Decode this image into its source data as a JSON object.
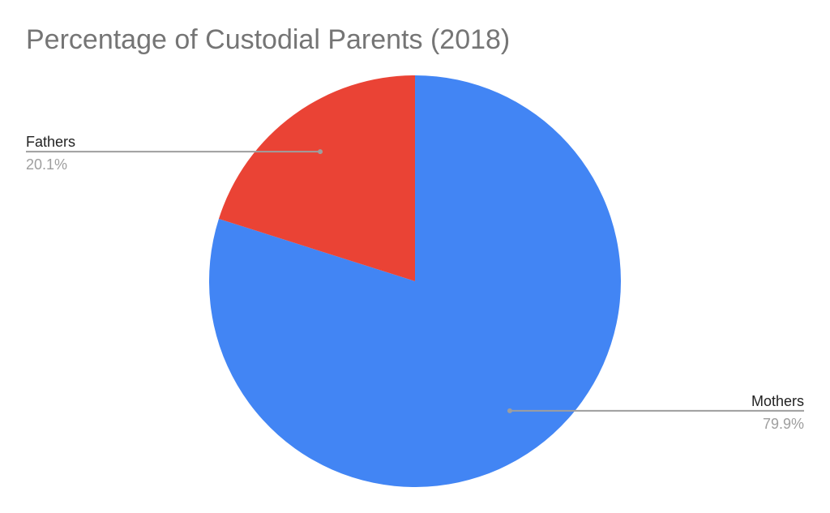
{
  "chart_data": {
    "type": "pie",
    "title": "Percentage of Custodial Parents (2018)",
    "slices": [
      {
        "label": "Mothers",
        "value": 79.9,
        "value_label": "79.9%",
        "color": "#4285F4"
      },
      {
        "label": "Fathers",
        "value": 20.1,
        "value_label": "20.1%",
        "color": "#EA4335"
      }
    ],
    "start_angle_deg": 0,
    "direction": "clockwise",
    "legend": "none",
    "labels": "outside-with-leader-lines"
  }
}
